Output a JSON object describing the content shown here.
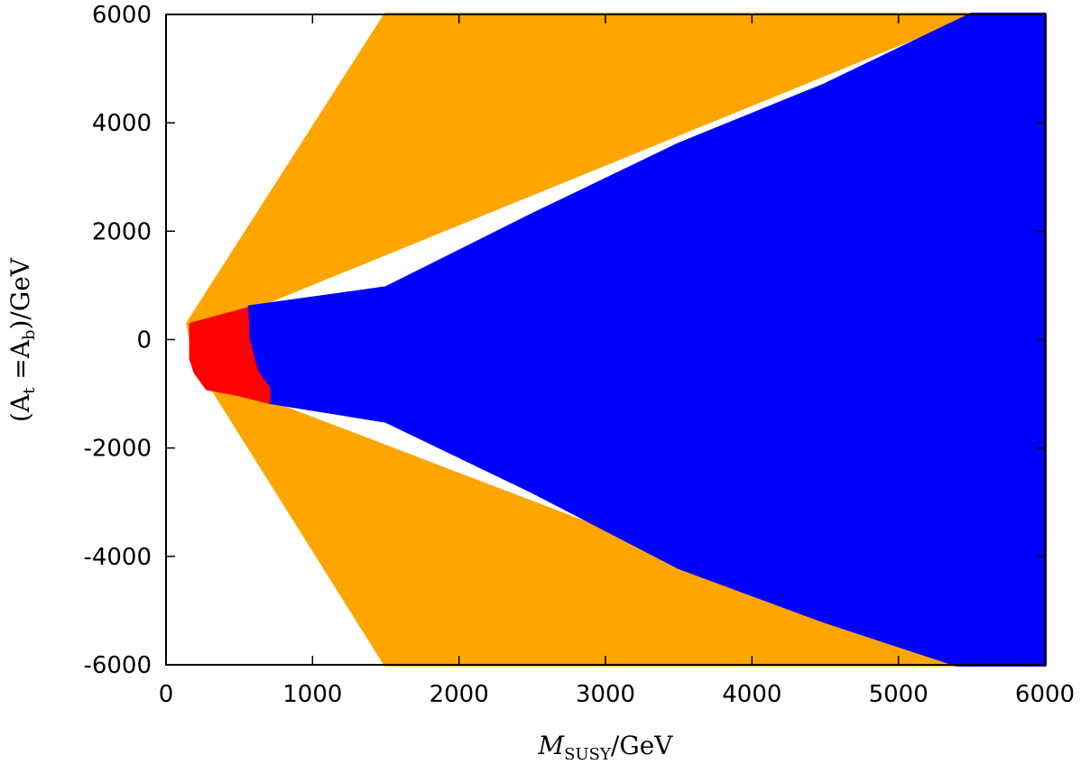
{
  "chart_data": {
    "type": "area",
    "xlim": [
      0,
      6000
    ],
    "ylim": [
      -6000,
      6000
    ],
    "x_ticks": [
      0,
      1000,
      2000,
      3000,
      4000,
      5000,
      6000
    ],
    "y_ticks": [
      6000,
      4000,
      2000,
      0,
      -2000,
      -4000,
      -6000
    ],
    "x_tick_labels": [
      "0",
      "1000",
      "2000",
      "3000",
      "4000",
      "5000",
      "6000"
    ],
    "y_tick_labels": [
      "6000",
      "4000",
      "2000",
      "0",
      "-2000",
      "-4000",
      "-6000"
    ],
    "xlabel": {
      "main": "M",
      "sub": "SUSY",
      "rest": "/GeV"
    },
    "ylabel": {
      "open": "(A",
      "sub1": "t",
      "mid": " =A",
      "sub2": "b",
      "close": ")/GeV"
    },
    "grid": false,
    "series": [
      {
        "color": "#ffa500",
        "points": [
          [
            150,
            300
          ],
          [
            1500,
            6000
          ],
          [
            5500,
            6000
          ],
          [
            600,
            600
          ],
          [
            700,
            -1150
          ],
          [
            5400,
            -6000
          ],
          [
            1500,
            -6000
          ],
          [
            200,
            -400
          ]
        ]
      },
      {
        "color": "#0000ff",
        "points": [
          [
            570,
            600
          ],
          [
            1500,
            950
          ],
          [
            2500,
            2300
          ],
          [
            3500,
            3600
          ],
          [
            4500,
            4700
          ],
          [
            5500,
            6000
          ],
          [
            6000,
            6000
          ],
          [
            6000,
            -6000
          ],
          [
            5400,
            -6000
          ],
          [
            4500,
            -5200
          ],
          [
            3500,
            -4200
          ],
          [
            2500,
            -2800
          ],
          [
            1500,
            -1500
          ],
          [
            700,
            -1150
          ],
          [
            700,
            -800
          ],
          [
            650,
            -600
          ],
          [
            570,
            -200
          ]
        ]
      },
      {
        "color": "#ff0000",
        "points": [
          [
            170,
            280
          ],
          [
            550,
            560
          ],
          [
            560,
            0
          ],
          [
            620,
            -600
          ],
          [
            700,
            -900
          ],
          [
            700,
            -1150
          ],
          [
            480,
            -1000
          ],
          [
            280,
            -900
          ],
          [
            200,
            -600
          ],
          [
            170,
            -350
          ]
        ]
      }
    ]
  }
}
